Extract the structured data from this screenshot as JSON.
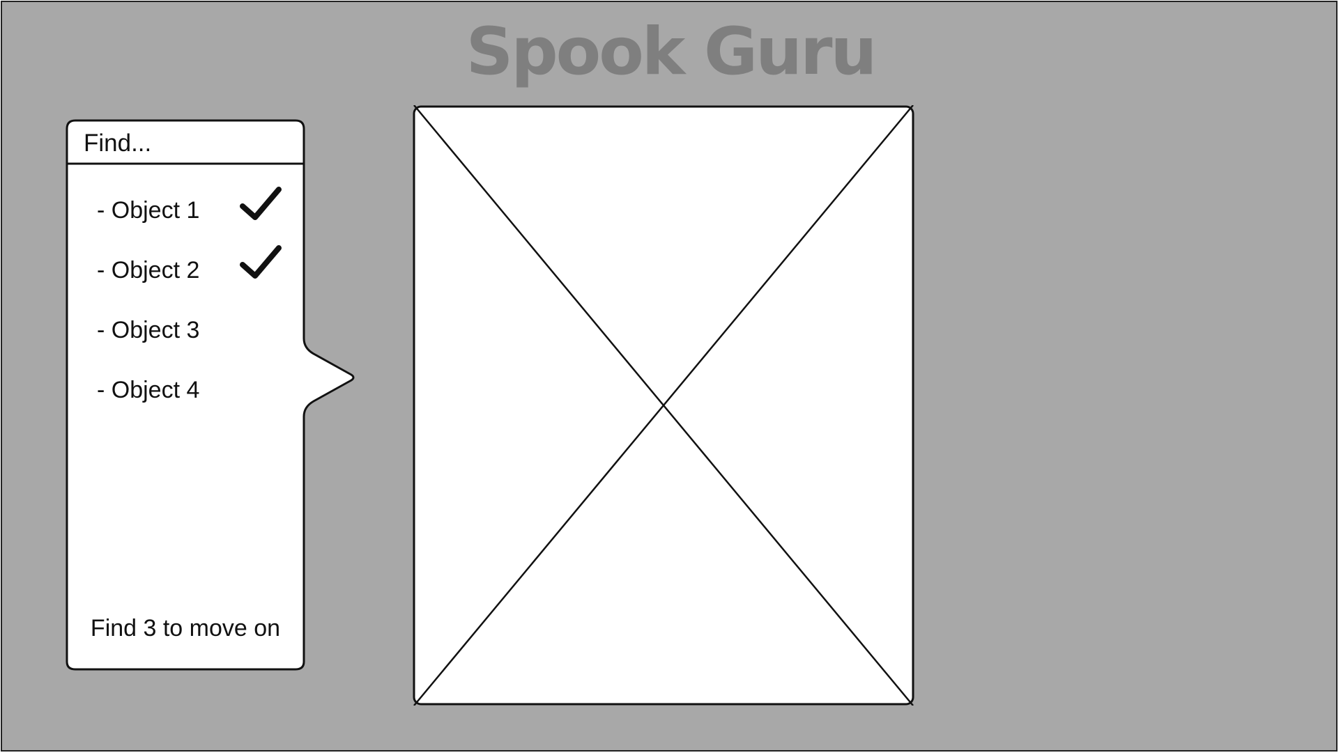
{
  "app": {
    "title": "Spook Guru"
  },
  "find_panel": {
    "header": "Find...",
    "items": [
      {
        "label": "- Object 1",
        "found": true,
        "check_icon": "checkmark-icon"
      },
      {
        "label": "- Object 2",
        "found": true,
        "check_icon": "checkmark-icon"
      },
      {
        "label": "- Object 3",
        "found": false
      },
      {
        "label": "- Object 4",
        "found": false
      }
    ],
    "footer": "Find 3 to move on"
  },
  "image_placeholder": {
    "icon": "image-placeholder-icon"
  },
  "colors": {
    "background": "#a8a8a8",
    "title": "#7f7f7f",
    "panel": "#ffffff",
    "stroke": "#111111"
  }
}
